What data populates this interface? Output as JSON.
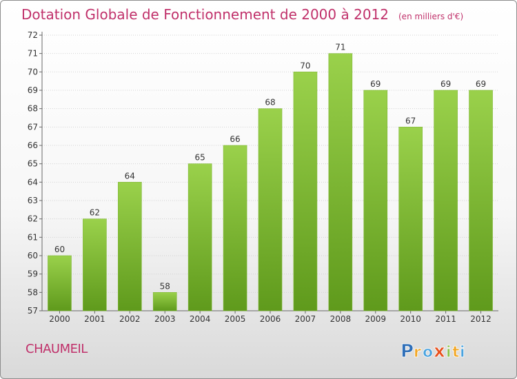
{
  "header": {
    "title": "Dotation Globale de Fonctionnement de 2000 à 2012",
    "unit": "(en milliers d'€)"
  },
  "commune": "CHAUMEIL",
  "brand": {
    "letters": [
      "P",
      "r",
      "o",
      "x",
      "i",
      "t",
      "i"
    ],
    "colors": [
      "#2f6fb8",
      "#f2a623",
      "#4aa3df",
      "#e8501c",
      "#8bc34a",
      "#f2a623",
      "#4aa3df"
    ]
  },
  "chart_data": {
    "type": "bar",
    "categories": [
      "2000",
      "2001",
      "2002",
      "2003",
      "2004",
      "2005",
      "2006",
      "2007",
      "2008",
      "2009",
      "2010",
      "2011",
      "2012"
    ],
    "values": [
      60,
      62,
      64,
      58,
      65,
      66,
      68,
      70,
      71,
      69,
      67,
      69,
      69
    ],
    "data_labels": [
      "60",
      "62",
      "64",
      "58",
      "65",
      "66",
      "68",
      "70",
      "71",
      "69",
      "67",
      "69",
      "69"
    ],
    "ylim": [
      57,
      72
    ],
    "yticks": [
      "57",
      "58",
      "59",
      "60",
      "61",
      "62",
      "63",
      "64",
      "65",
      "66",
      "67",
      "68",
      "69",
      "70",
      "71",
      "72"
    ],
    "title": "Dotation Globale de Fonctionnement de 2000 à 2012",
    "xlabel": "",
    "ylabel": "",
    "grid": true,
    "bar_color": "#8cc63f",
    "bar_color_dark": "#5f9a1c"
  }
}
